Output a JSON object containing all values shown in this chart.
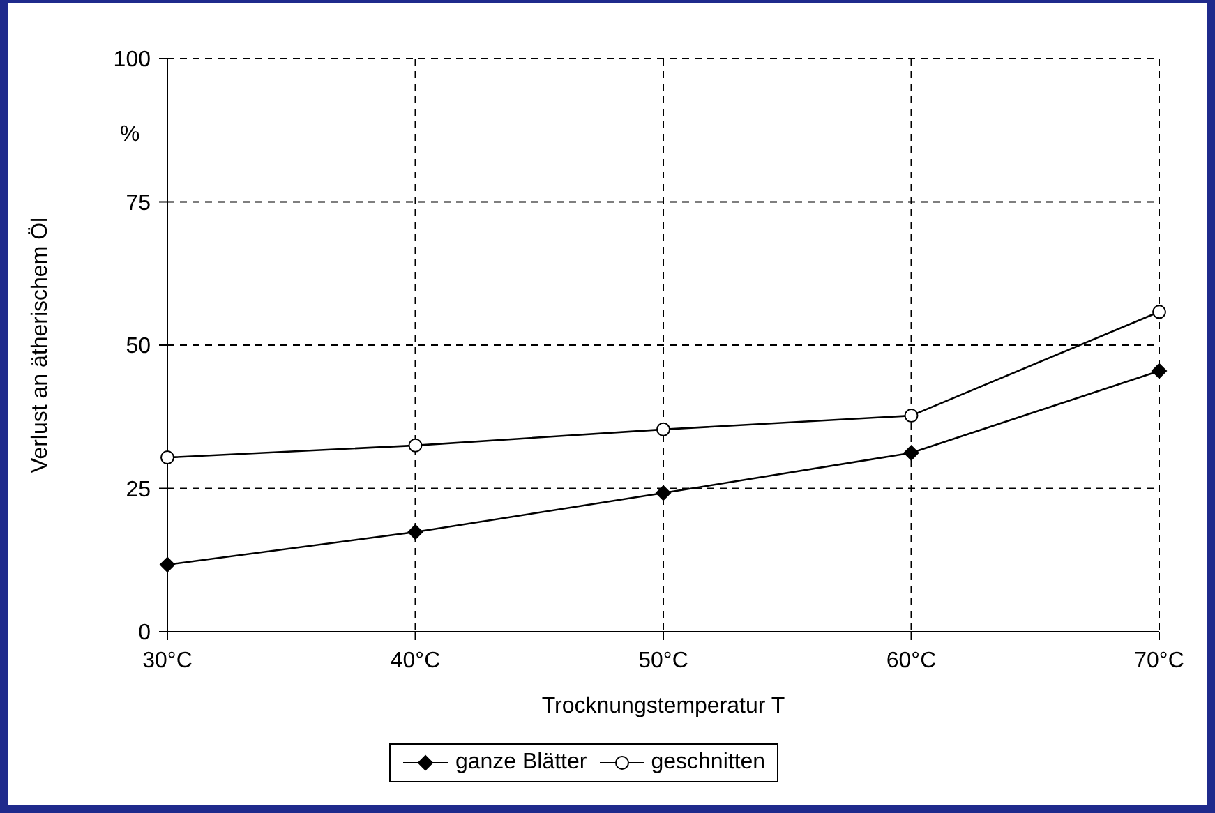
{
  "chart_data": {
    "type": "line",
    "xlabel": "Trocknungstemperatur T",
    "ylabel": "Verlust an ätherischem Öl",
    "annotations": [
      "%"
    ],
    "categories": [
      "30°C",
      "40°C",
      "50°C",
      "60°C",
      "70°C"
    ],
    "series": [
      {
        "name": "ganze Blätter",
        "color": "#000000",
        "marker": "diamond",
        "values": [
          11.7,
          17.4,
          24.2,
          31.2,
          45.5
        ]
      },
      {
        "name": "geschnitten",
        "color": "#000000",
        "marker": "circle",
        "values": [
          30.4,
          32.5,
          35.3,
          37.7,
          55.8
        ]
      }
    ],
    "ylim": [
      0,
      100
    ],
    "yticks": [
      0,
      25,
      50,
      75,
      100
    ],
    "grid": true,
    "legend": "bottom",
    "line_style": "solid"
  }
}
